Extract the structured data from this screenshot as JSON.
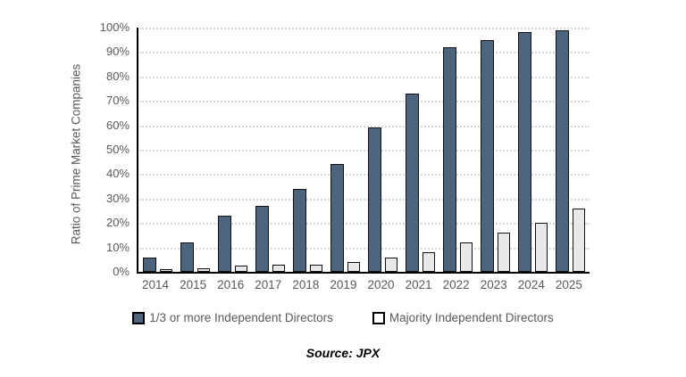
{
  "chart_data": {
    "type": "bar",
    "title": "",
    "categories": [
      "2014",
      "2015",
      "2016",
      "2017",
      "2018",
      "2019",
      "2020",
      "2021",
      "2022",
      "2023",
      "2024",
      "2025"
    ],
    "series": [
      {
        "name": "1/3 or more Independent Directors",
        "color": "#4d647d",
        "values": [
          6,
          12,
          23,
          27,
          34,
          44,
          59,
          73,
          92,
          95,
          98,
          99
        ]
      },
      {
        "name": "Majority Independent Directors",
        "color": "#e8e8e8",
        "values": [
          1,
          1.5,
          2.5,
          3,
          3,
          4,
          6,
          8,
          12,
          16,
          20,
          26
        ]
      }
    ],
    "xlabel": "",
    "ylabel": "Ratio of Prime Market Companies",
    "ylim": [
      0,
      100
    ],
    "y_ticks": [
      "0%",
      "10%",
      "20%",
      "30%",
      "40%",
      "50%",
      "60%",
      "70%",
      "80%",
      "90%",
      "100%"
    ],
    "grid": "horizontal-dotted",
    "gridline_color": "#d9d9d9",
    "axis_color": "#000000",
    "tick_label_color": "#595959",
    "legend_position": "bottom"
  },
  "source_note": "Source: JPX"
}
